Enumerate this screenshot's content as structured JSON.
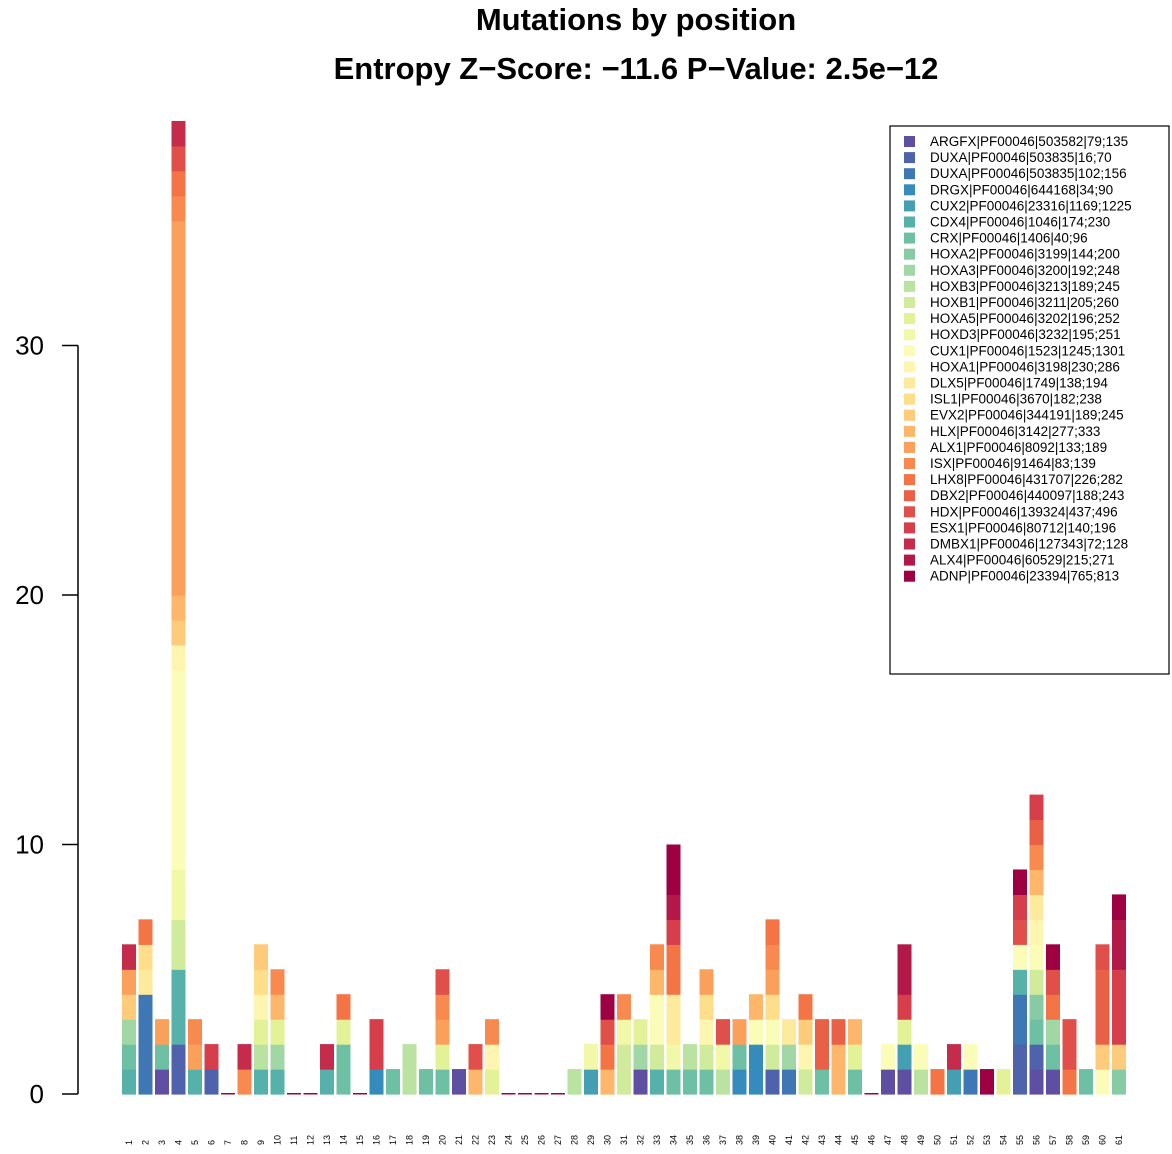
{
  "chart_data": {
    "type": "bar",
    "stacked": true,
    "title_lines": [
      "Mutations by position",
      "Entropy Z−Score: −11.6 P−Value: 2.5e−12"
    ],
    "ylim": [
      0,
      39
    ],
    "yticks": [
      0,
      10,
      20,
      30
    ],
    "grid": false,
    "legend_placement": "top-right",
    "categories": [
      "1",
      "2",
      "3",
      "4",
      "5",
      "6",
      "7",
      "8",
      "9",
      "10",
      "11",
      "12",
      "13",
      "14",
      "15",
      "16",
      "17",
      "18",
      "19",
      "20",
      "21",
      "22",
      "23",
      "24",
      "25",
      "26",
      "27",
      "28",
      "29",
      "30",
      "31",
      "32",
      "33",
      "34",
      "35",
      "36",
      "37",
      "38",
      "39",
      "40",
      "41",
      "42",
      "43",
      "44",
      "45",
      "46",
      "47",
      "48",
      "49",
      "50",
      "51",
      "52",
      "53",
      "54",
      "55",
      "56",
      "57",
      "58",
      "59",
      "60",
      "61"
    ],
    "series": [
      {
        "name": "ARGFX|PF00046|503582|79;135",
        "color": "#5E4FA2"
      },
      {
        "name": "DUXA|PF00046|503835|16;70",
        "color": "#4E63AC"
      },
      {
        "name": "DUXA|PF00046|503835|102;156",
        "color": "#3F77B5"
      },
      {
        "name": "DRGX|PF00046|644168|34;90",
        "color": "#358BBB"
      },
      {
        "name": "CUX2|PF00046|23316|1169;1225",
        "color": "#459FB3"
      },
      {
        "name": "CDX4|PF00046|1046|174;230",
        "color": "#56B1AA"
      },
      {
        "name": "CRX|PF00046|1406|40;96",
        "color": "#6DC0A3"
      },
      {
        "name": "HOXA2|PF00046|3199|144;200",
        "color": "#86CBA4"
      },
      {
        "name": "HOXA3|PF00046|3200|192;248",
        "color": "#A0D7A4"
      },
      {
        "name": "HOXB3|PF00046|3213|189;245",
        "color": "#BAE2A1"
      },
      {
        "name": "HOXB1|PF00046|3211|205;260",
        "color": "#D1EB9C"
      },
      {
        "name": "HOXA5|PF00046|3202|196;252",
        "color": "#E4F297"
      },
      {
        "name": "HOXD3|PF00046|3232|195;251",
        "color": "#F1F8A7"
      },
      {
        "name": "CUX1|PF00046|1523|1245;1301",
        "color": "#FBFCB8"
      },
      {
        "name": "HOXA1|PF00046|3198|230;286",
        "color": "#FEF6B0"
      },
      {
        "name": "DLX5|PF00046|1749|138;194",
        "color": "#FEEA9D"
      },
      {
        "name": "ISL1|PF00046|3670|182;238",
        "color": "#FEDD8B"
      },
      {
        "name": "EVX2|PF00046|344191|189;245",
        "color": "#FDCB7A"
      },
      {
        "name": "HLX|PF00046|3142|277;333",
        "color": "#FDB66A"
      },
      {
        "name": "ALX1|PF00046|8092|133;189",
        "color": "#FBA05B"
      },
      {
        "name": "ISX|PF00046|91464|83;139",
        "color": "#F88A50"
      },
      {
        "name": "LHX8|PF00046|431707|226;282",
        "color": "#F47446"
      },
      {
        "name": "DBX2|PF00046|440097|188;243",
        "color": "#EA6046"
      },
      {
        "name": "HDX|PF00046|139324|437;496",
        "color": "#E04F49"
      },
      {
        "name": "ESX1|PF00046|80712|140;196",
        "color": "#D63E4C"
      },
      {
        "name": "DMBX1|PF00046|127343|72;128",
        "color": "#C52C4B"
      },
      {
        "name": "ALX4|PF00046|60529|215;271",
        "color": "#B21948"
      },
      {
        "name": "ADNP|PF00046|23394|765;813",
        "color": "#9E0142"
      }
    ],
    "stacks": [
      [
        5,
        6,
        8,
        17,
        19,
        25
      ],
      [
        2,
        2,
        2,
        2,
        15,
        16,
        21
      ],
      [
        0,
        6,
        19
      ],
      [
        1,
        1,
        5,
        5,
        5,
        10,
        10,
        12,
        12,
        13,
        13,
        13,
        13,
        13,
        13,
        13,
        13,
        14,
        17,
        18,
        19,
        19,
        19,
        19,
        19,
        19,
        19,
        19,
        19,
        19,
        19,
        19,
        19,
        19,
        19,
        20,
        21,
        23,
        25
      ],
      [
        5,
        19,
        20
      ],
      [
        1,
        24
      ],
      [],
      [
        20,
        25
      ],
      [
        5,
        9,
        11,
        14,
        16,
        17
      ],
      [
        5,
        8,
        11,
        18,
        20
      ],
      [],
      [],
      [
        5,
        25
      ],
      [
        6,
        6,
        11,
        21
      ],
      [],
      [
        3,
        24,
        24
      ],
      [
        6
      ],
      [
        9,
        9
      ],
      [
        6
      ],
      [
        6,
        11,
        19,
        20,
        23
      ],
      [
        0
      ],
      [
        18,
        23
      ],
      [
        11,
        14,
        20
      ],
      [],
      [],
      [],
      [],
      [
        9
      ],
      [
        4,
        12
      ],
      [
        18,
        21,
        23,
        27
      ],
      [
        10,
        10,
        12,
        20
      ],
      [
        0,
        8,
        11
      ],
      [
        5,
        10,
        13,
        13,
        18,
        20
      ],
      [
        6,
        12,
        15,
        15,
        21,
        21,
        24,
        26,
        27,
        27
      ],
      [
        6,
        9
      ],
      [
        6,
        10,
        14,
        16,
        19
      ],
      [
        9,
        12,
        23
      ],
      [
        3,
        6,
        19
      ],
      [
        3,
        3,
        13,
        18
      ],
      [
        1,
        10,
        13,
        16,
        19,
        20,
        21
      ],
      [
        2,
        8,
        15
      ],
      [
        10,
        14,
        17,
        21
      ],
      [
        6,
        22,
        22
      ],
      [
        18,
        18,
        22
      ],
      [
        6,
        11,
        18
      ],
      [],
      [
        0,
        13
      ],
      [
        0,
        4,
        11,
        24,
        26,
        26
      ],
      [
        9,
        13
      ],
      [
        21
      ],
      [
        4,
        25
      ],
      [
        2,
        13
      ],
      [
        27
      ],
      [
        11
      ],
      [
        1,
        1,
        2,
        2,
        5,
        13,
        23,
        24,
        27
      ],
      [
        0,
        1,
        6,
        7,
        10,
        13,
        14,
        15,
        18,
        20,
        22,
        24
      ],
      [
        0,
        6,
        8,
        21,
        23,
        27
      ],
      [
        21,
        23,
        23
      ],
      [
        6
      ],
      [
        13,
        17,
        22,
        22,
        22,
        23
      ],
      [
        7,
        17,
        24,
        24,
        24,
        26,
        26,
        27
      ]
    ]
  }
}
